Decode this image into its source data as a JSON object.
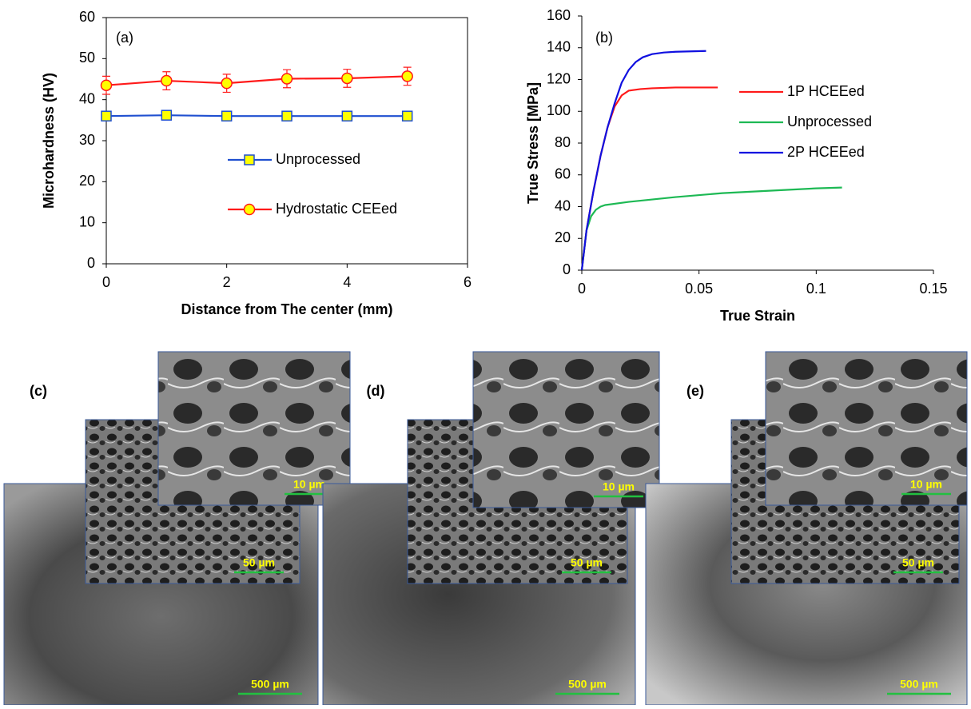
{
  "chart_data": [
    {
      "type": "line",
      "annotation": "(a)",
      "x_label": "Distance from The center (mm)",
      "y_label": "Microhardness (HV)",
      "x": [
        0,
        1,
        2,
        3,
        4,
        5
      ],
      "series": [
        {
          "name": "Unprocessed",
          "color": "#1f4fd0",
          "marker": "square",
          "marker_color": "#ffff00",
          "values": [
            36,
            36.2,
            36,
            36,
            36,
            36
          ]
        },
        {
          "name": "Hydrostatic CEEed",
          "color": "#ff1a1a",
          "marker": "circle",
          "marker_color": "#ffff00",
          "values": [
            43.5,
            44.6,
            44,
            45.1,
            45.2,
            45.7
          ],
          "errors": [
            2.2,
            2.2,
            2.2,
            2.2,
            2.2,
            2.2
          ]
        }
      ],
      "xlim": [
        0,
        6
      ],
      "xticks": [
        0,
        2,
        4,
        6
      ],
      "ylim": [
        0,
        60
      ],
      "yticks": [
        0,
        10,
        20,
        30,
        40,
        50,
        60
      ],
      "frame": true,
      "legend": "lower right"
    },
    {
      "type": "line",
      "annotation": "(b)",
      "x_label": "True Strain",
      "y_label": "True Stress [MPa]",
      "series": [
        {
          "name": "1P HCEEed",
          "color": "#ff1a1a",
          "x": [
            0,
            0.002,
            0.005,
            0.008,
            0.011,
            0.014,
            0.017,
            0.02,
            0.025,
            0.03,
            0.04,
            0.05,
            0.058
          ],
          "values": [
            0,
            25,
            50,
            72,
            90,
            103,
            110,
            113,
            114,
            114.5,
            115,
            115,
            115
          ]
        },
        {
          "name": "Unprocessed",
          "color": "#1db954",
          "x": [
            0,
            0.002,
            0.004,
            0.006,
            0.008,
            0.01,
            0.02,
            0.04,
            0.06,
            0.08,
            0.1,
            0.111
          ],
          "values": [
            0,
            25,
            34,
            38,
            40,
            41,
            43,
            46,
            48.5,
            50,
            51.5,
            52
          ]
        },
        {
          "name": "2P HCEEed",
          "color": "#1010e0",
          "x": [
            0,
            0.002,
            0.005,
            0.008,
            0.011,
            0.014,
            0.017,
            0.02,
            0.023,
            0.026,
            0.03,
            0.035,
            0.04,
            0.053
          ],
          "values": [
            0,
            25,
            50,
            72,
            90,
            105,
            118,
            126,
            131,
            134,
            136,
            137,
            137.5,
            138
          ]
        }
      ],
      "xlim": [
        0,
        0.15
      ],
      "xticks": [
        0,
        0.05,
        0.1,
        0.15
      ],
      "ylim": [
        0,
        160
      ],
      "yticks": [
        0,
        20,
        40,
        60,
        80,
        100,
        120,
        140,
        160
      ],
      "frame": false,
      "legend": "right"
    }
  ],
  "sem_panels": [
    {
      "label": "(c)",
      "scale_bars": [
        "10 µm",
        "50 µm",
        "500 µm"
      ]
    },
    {
      "label": "(d)",
      "scale_bars": [
        "10 µm",
        "50 µm",
        "500 µm"
      ]
    },
    {
      "label": "(e)",
      "scale_bars": [
        "10 µm",
        "50 µm",
        "500 µm"
      ]
    }
  ]
}
